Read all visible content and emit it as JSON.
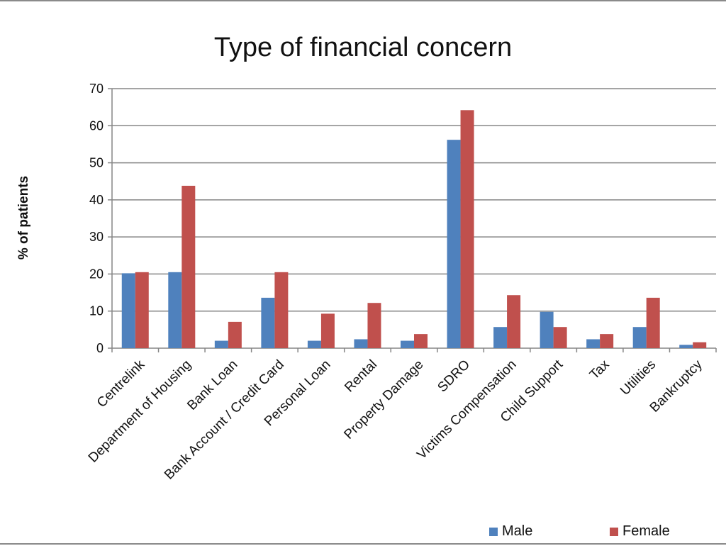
{
  "chart_data": {
    "type": "bar",
    "title": "Type of financial concern",
    "xlabel": "",
    "ylabel": "% of patients",
    "ylim": [
      0,
      70
    ],
    "yticks": [
      0,
      10,
      20,
      30,
      40,
      50,
      60,
      70
    ],
    "grid": true,
    "legend_position": "bottom-right",
    "categories": [
      "Centrelink",
      "Department of Housing",
      "Bank Loan",
      "Bank Account / Credit Card",
      "Personal Loan",
      "Rental",
      "Property Damage",
      "SDRO",
      "Victims Compensation",
      "Child Support",
      "Tax",
      "Utilities",
      "Bankruptcy"
    ],
    "series": [
      {
        "name": "Male",
        "color": "#4f81bd",
        "values": [
          20.2,
          20.5,
          2,
          13.6,
          2,
          2.4,
          2,
          56.2,
          5.7,
          9.8,
          2.4,
          5.7,
          0.9
        ]
      },
      {
        "name": "Female",
        "color": "#c0504d",
        "values": [
          20.5,
          43.8,
          7.1,
          20.5,
          9.3,
          12.2,
          3.8,
          64.2,
          14.3,
          5.7,
          3.8,
          13.6,
          1.6
        ]
      }
    ]
  }
}
